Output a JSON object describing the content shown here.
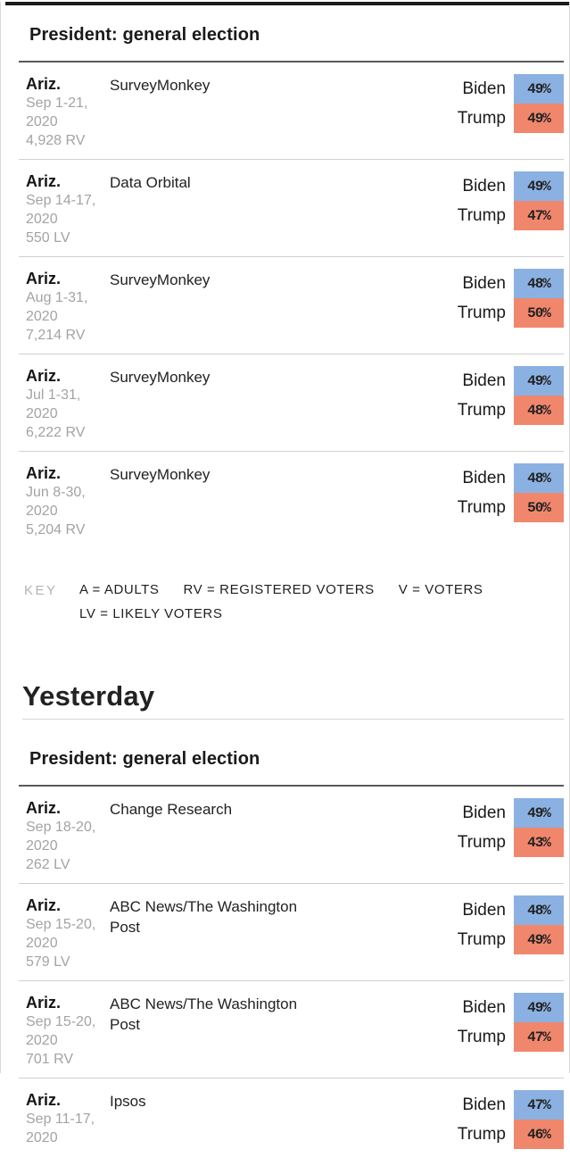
{
  "colors": {
    "biden": "#8bb1e2",
    "trump": "#f0876d",
    "top_bar": "#1c1c1c"
  },
  "sections": [
    {
      "title": "President: general election",
      "rows": [
        {
          "state": "Ariz.",
          "date_line1": "Sep 1-21,",
          "date_line2": "2020",
          "sample": "4,928 RV",
          "pollster": "SurveyMonkey",
          "candidate1": "Biden",
          "value1": "49%",
          "candidate2": "Trump",
          "value2": "49%"
        },
        {
          "state": "Ariz.",
          "date_line1": "Sep 14-17,",
          "date_line2": "2020",
          "sample": "550 LV",
          "pollster": "Data Orbital",
          "candidate1": "Biden",
          "value1": "49%",
          "candidate2": "Trump",
          "value2": "47%"
        },
        {
          "state": "Ariz.",
          "date_line1": "Aug 1-31,",
          "date_line2": "2020",
          "sample": "7,214 RV",
          "pollster": "SurveyMonkey",
          "candidate1": "Biden",
          "value1": "48%",
          "candidate2": "Trump",
          "value2": "50%"
        },
        {
          "state": "Ariz.",
          "date_line1": "Jul 1-31,",
          "date_line2": "2020",
          "sample": "6,222 RV",
          "pollster": "SurveyMonkey",
          "candidate1": "Biden",
          "value1": "49%",
          "candidate2": "Trump",
          "value2": "48%"
        },
        {
          "state": "Ariz.",
          "date_line1": "Jun 8-30,",
          "date_line2": "2020",
          "sample": "5,204 RV",
          "pollster": "SurveyMonkey",
          "candidate1": "Biden",
          "value1": "48%",
          "candidate2": "Trump",
          "value2": "50%"
        }
      ]
    },
    {
      "title": "President: general election",
      "rows": [
        {
          "state": "Ariz.",
          "date_line1": "Sep 18-20,",
          "date_line2": "2020",
          "sample": "262 LV",
          "pollster": "Change Research",
          "candidate1": "Biden",
          "value1": "49%",
          "candidate2": "Trump",
          "value2": "43%"
        },
        {
          "state": "Ariz.",
          "date_line1": "Sep 15-20,",
          "date_line2": "2020",
          "sample": "579 LV",
          "pollster": "ABC News/The Washington Post",
          "candidate1": "Biden",
          "value1": "48%",
          "candidate2": "Trump",
          "value2": "49%"
        },
        {
          "state": "Ariz.",
          "date_line1": "Sep 15-20,",
          "date_line2": "2020",
          "sample": "701 RV",
          "pollster": "ABC News/The Washington Post",
          "candidate1": "Biden",
          "value1": "49%",
          "candidate2": "Trump",
          "value2": "47%"
        },
        {
          "state": "Ariz.",
          "date_line1": "Sep 11-17,",
          "date_line2": "2020",
          "sample": "",
          "pollster": "Ipsos",
          "candidate1": "Biden",
          "value1": "47%",
          "candidate2": "Trump",
          "value2": "46%"
        }
      ]
    }
  ],
  "key": {
    "label": "KEY",
    "items": [
      "A = ADULTS",
      "RV = REGISTERED VOTERS",
      "V = VOTERS",
      "LV = LIKELY VOTERS"
    ]
  },
  "divider": {
    "title": "Yesterday"
  }
}
